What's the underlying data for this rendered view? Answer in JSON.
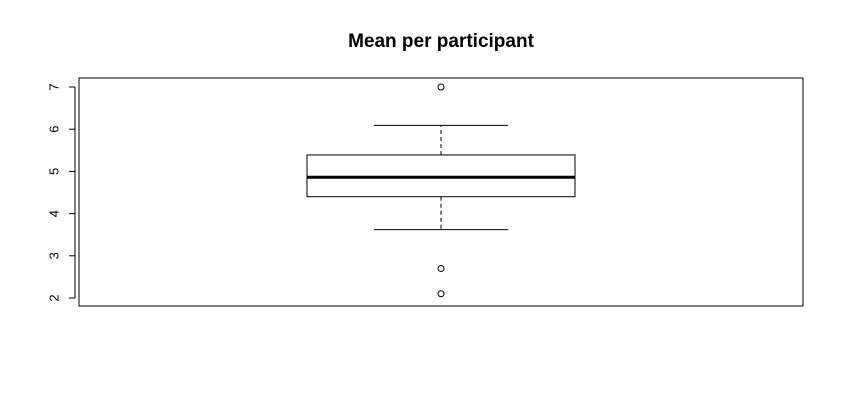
{
  "chart_data": {
    "type": "boxplot",
    "title": "Mean per participant",
    "xlabel": "",
    "ylabel": "",
    "orientation": "vertical",
    "ylim": [
      1.95,
      7.25
    ],
    "yticks": [
      "2",
      "3",
      "4",
      "5",
      "6",
      "7"
    ],
    "stats": {
      "whisker_low": 3.62,
      "q1": 4.4,
      "median": 4.86,
      "q3": 5.39,
      "whisker_high": 6.09
    },
    "outliers": [
      7.0,
      2.7,
      2.1
    ],
    "grid": false,
    "legend": "none"
  }
}
